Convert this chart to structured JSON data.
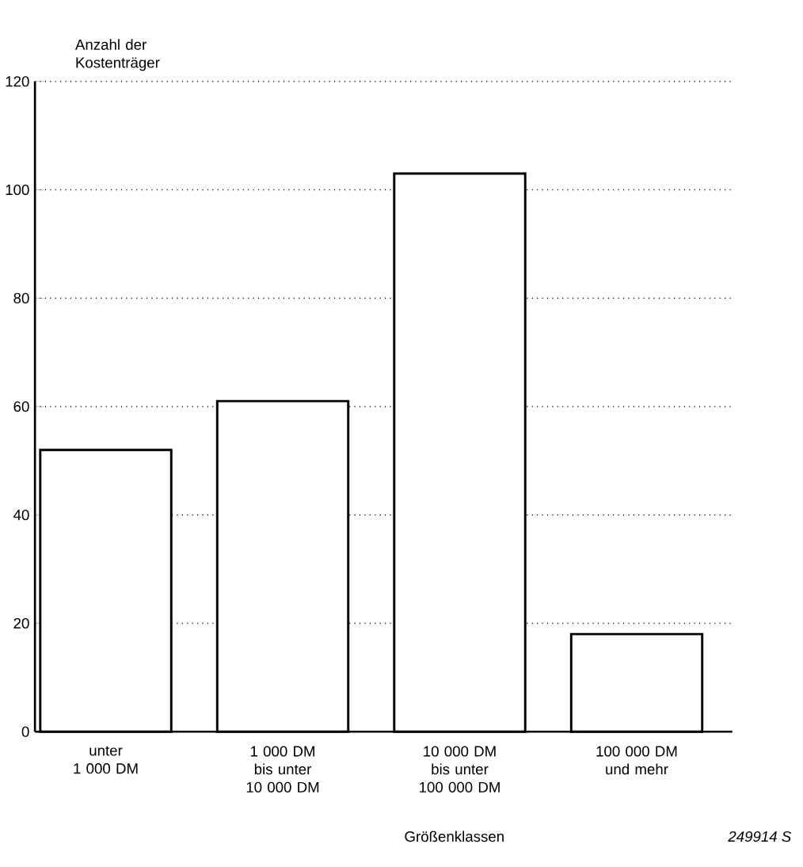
{
  "chart_data": {
    "type": "bar",
    "ylabel": "Anzahl der Kostenträger",
    "xlabel": "Größenklassen",
    "categories": [
      "unter 1 000 DM",
      "1 000 DM bis unter 10 000 DM",
      "10 000 DM bis unter 100 000 DM",
      "100 000 DM und mehr"
    ],
    "values": [
      52,
      61,
      103,
      18
    ],
    "color": "#ffffff",
    "ylim": [
      0,
      120
    ],
    "yticks": [
      0,
      20,
      40,
      60,
      80,
      100,
      120
    ],
    "grid": "y",
    "annotations": [
      "*249914 S*"
    ]
  }
}
